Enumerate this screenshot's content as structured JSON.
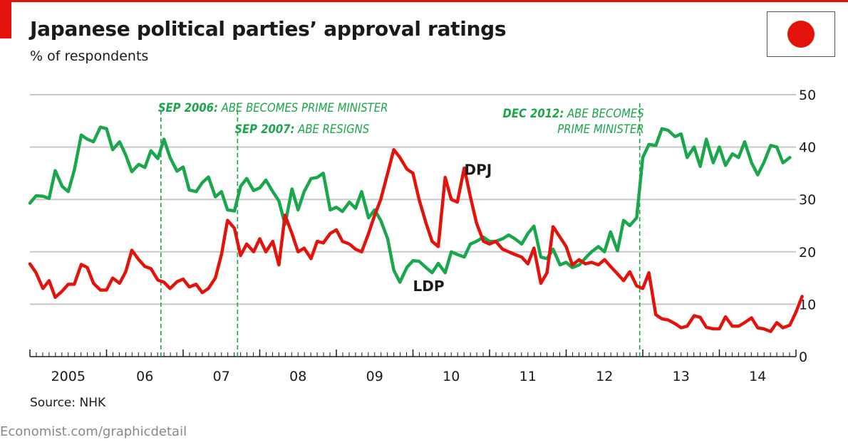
{
  "header": {
    "title": "Japanese political parties’ approval ratings",
    "subtitle": "% of respondents"
  },
  "footer": {
    "source": "Source: NHK",
    "credit": "Economist.com/graphicdetail"
  },
  "colors": {
    "ldp": "#1aa64a",
    "dpj": "#e3120b",
    "annotation": "#1aa64a",
    "grid": "#c8c8c8",
    "brand_red": "#e3120b"
  },
  "chart_data": {
    "type": "line",
    "ylim": [
      0,
      50
    ],
    "yticks": [
      0,
      10,
      20,
      30,
      40,
      50
    ],
    "xlim": [
      2005.0,
      2015.0
    ],
    "year_labels": [
      {
        "x": 2005.5,
        "label": "2005"
      },
      {
        "x": 2006.5,
        "label": "06"
      },
      {
        "x": 2007.5,
        "label": "07"
      },
      {
        "x": 2008.5,
        "label": "08"
      },
      {
        "x": 2009.5,
        "label": "09"
      },
      {
        "x": 2010.5,
        "label": "10"
      },
      {
        "x": 2011.5,
        "label": "11"
      },
      {
        "x": 2012.5,
        "label": "12"
      },
      {
        "x": 2013.5,
        "label": "13"
      },
      {
        "x": 2014.5,
        "label": "14"
      }
    ],
    "annotations": [
      {
        "x": 2006.71,
        "lines": [
          "SEP 2006:",
          " ABE BECOMES PRIME MINISTER"
        ],
        "anchor": "start"
      },
      {
        "x": 2007.71,
        "lines": [
          "SEP 2007:",
          " ABE RESIGNS"
        ],
        "anchor": "start"
      },
      {
        "x": 2012.96,
        "lines": [
          "DEC 2012:",
          " ABE BECOMES",
          "PRIME MINISTER"
        ],
        "anchor": "end"
      }
    ],
    "series": [
      {
        "name": "LDP",
        "label_at": [
          2010.0,
          12.5
        ],
        "points": [
          [
            2005.0,
            29.3
          ],
          [
            2005.08,
            30.7
          ],
          [
            2005.17,
            30.6
          ],
          [
            2005.25,
            30.2
          ],
          [
            2005.33,
            35.5
          ],
          [
            2005.42,
            32.5
          ],
          [
            2005.5,
            31.5
          ],
          [
            2005.58,
            35.6
          ],
          [
            2005.67,
            42.3
          ],
          [
            2005.75,
            41.5
          ],
          [
            2005.83,
            41.0
          ],
          [
            2005.92,
            43.8
          ],
          [
            2006.0,
            43.5
          ],
          [
            2006.08,
            39.5
          ],
          [
            2006.17,
            41.0
          ],
          [
            2006.25,
            38.5
          ],
          [
            2006.33,
            35.3
          ],
          [
            2006.42,
            36.7
          ],
          [
            2006.5,
            36.1
          ],
          [
            2006.58,
            39.3
          ],
          [
            2006.67,
            37.8
          ],
          [
            2006.75,
            41.5
          ],
          [
            2006.83,
            38.0
          ],
          [
            2006.92,
            35.4
          ],
          [
            2007.0,
            36.2
          ],
          [
            2007.08,
            31.8
          ],
          [
            2007.17,
            31.5
          ],
          [
            2007.25,
            33.2
          ],
          [
            2007.33,
            34.3
          ],
          [
            2007.42,
            30.5
          ],
          [
            2007.5,
            31.5
          ],
          [
            2007.58,
            28.0
          ],
          [
            2007.67,
            27.8
          ],
          [
            2007.75,
            32.5
          ],
          [
            2007.83,
            34.0
          ],
          [
            2007.92,
            31.7
          ],
          [
            2008.0,
            32.2
          ],
          [
            2008.08,
            33.7
          ],
          [
            2008.17,
            31.5
          ],
          [
            2008.25,
            29.7
          ],
          [
            2008.33,
            25.2
          ],
          [
            2008.42,
            32.0
          ],
          [
            2008.5,
            28.0
          ],
          [
            2008.58,
            31.5
          ],
          [
            2008.67,
            34.0
          ],
          [
            2008.75,
            34.2
          ],
          [
            2008.83,
            35.0
          ],
          [
            2008.92,
            28.0
          ],
          [
            2009.0,
            28.5
          ],
          [
            2009.08,
            27.7
          ],
          [
            2009.17,
            29.5
          ],
          [
            2009.25,
            28.3
          ],
          [
            2009.33,
            31.5
          ],
          [
            2009.42,
            26.5
          ],
          [
            2009.5,
            28.0
          ],
          [
            2009.58,
            26.0
          ],
          [
            2009.67,
            22.5
          ],
          [
            2009.75,
            16.5
          ],
          [
            2009.83,
            14.2
          ],
          [
            2009.92,
            17.0
          ],
          [
            2010.0,
            18.3
          ],
          [
            2010.08,
            18.2
          ],
          [
            2010.17,
            17.0
          ],
          [
            2010.25,
            16.0
          ],
          [
            2010.33,
            17.8
          ],
          [
            2010.42,
            16.0
          ],
          [
            2010.5,
            20.0
          ],
          [
            2010.58,
            19.5
          ],
          [
            2010.67,
            19.0
          ],
          [
            2010.75,
            21.5
          ],
          [
            2010.83,
            22.0
          ],
          [
            2010.92,
            22.8
          ],
          [
            2011.0,
            22.0
          ],
          [
            2011.08,
            22.0
          ],
          [
            2011.17,
            22.5
          ],
          [
            2011.25,
            23.2
          ],
          [
            2011.33,
            22.5
          ],
          [
            2011.42,
            21.5
          ],
          [
            2011.5,
            23.5
          ],
          [
            2011.58,
            24.9
          ],
          [
            2011.67,
            19.0
          ],
          [
            2011.75,
            18.7
          ],
          [
            2011.83,
            20.5
          ],
          [
            2011.92,
            17.5
          ],
          [
            2012.0,
            18.0
          ],
          [
            2012.08,
            17.0
          ],
          [
            2012.17,
            17.5
          ],
          [
            2012.25,
            18.8
          ],
          [
            2012.33,
            20.0
          ],
          [
            2012.42,
            21.0
          ],
          [
            2012.5,
            20.0
          ],
          [
            2012.58,
            23.8
          ],
          [
            2012.67,
            20.2
          ],
          [
            2012.75,
            26.0
          ],
          [
            2012.83,
            25.0
          ],
          [
            2012.92,
            26.5
          ],
          [
            2013.0,
            38.0
          ],
          [
            2013.08,
            40.5
          ],
          [
            2013.17,
            40.3
          ],
          [
            2013.25,
            43.5
          ],
          [
            2013.33,
            43.2
          ],
          [
            2013.42,
            42.0
          ],
          [
            2013.5,
            42.5
          ],
          [
            2013.58,
            38.0
          ],
          [
            2013.67,
            40.0
          ],
          [
            2013.75,
            36.3
          ],
          [
            2013.83,
            41.5
          ],
          [
            2013.92,
            37.0
          ],
          [
            2014.0,
            40.0
          ],
          [
            2014.08,
            36.5
          ],
          [
            2014.17,
            38.7
          ],
          [
            2014.25,
            38.0
          ],
          [
            2014.33,
            41.0
          ],
          [
            2014.42,
            37.0
          ],
          [
            2014.5,
            34.7
          ],
          [
            2014.58,
            37.0
          ],
          [
            2014.67,
            40.3
          ],
          [
            2014.75,
            40.0
          ],
          [
            2014.83,
            37.0
          ],
          [
            2014.92,
            38.0
          ]
        ]
      },
      {
        "name": "DPJ",
        "label_at": [
          2010.67,
          34.7
        ],
        "points": [
          [
            2005.0,
            17.7
          ],
          [
            2005.08,
            16.0
          ],
          [
            2005.17,
            13.0
          ],
          [
            2005.25,
            14.5
          ],
          [
            2005.33,
            11.3
          ],
          [
            2005.42,
            12.5
          ],
          [
            2005.5,
            13.8
          ],
          [
            2005.58,
            13.8
          ],
          [
            2005.67,
            17.6
          ],
          [
            2005.75,
            17.0
          ],
          [
            2005.83,
            14.0
          ],
          [
            2005.92,
            12.7
          ],
          [
            2006.0,
            12.7
          ],
          [
            2006.08,
            15.0
          ],
          [
            2006.17,
            14.0
          ],
          [
            2006.25,
            16.2
          ],
          [
            2006.33,
            20.3
          ],
          [
            2006.42,
            18.5
          ],
          [
            2006.5,
            17.2
          ],
          [
            2006.58,
            16.8
          ],
          [
            2006.67,
            14.6
          ],
          [
            2006.75,
            14.2
          ],
          [
            2006.83,
            13.0
          ],
          [
            2006.92,
            14.3
          ],
          [
            2007.0,
            14.8
          ],
          [
            2007.08,
            13.3
          ],
          [
            2007.17,
            13.8
          ],
          [
            2007.25,
            12.2
          ],
          [
            2007.33,
            13.0
          ],
          [
            2007.42,
            15.0
          ],
          [
            2007.5,
            19.5
          ],
          [
            2007.58,
            26.0
          ],
          [
            2007.67,
            24.5
          ],
          [
            2007.75,
            19.3
          ],
          [
            2007.83,
            21.5
          ],
          [
            2007.92,
            20.0
          ],
          [
            2008.0,
            22.5
          ],
          [
            2008.08,
            20.0
          ],
          [
            2008.17,
            22.0
          ],
          [
            2008.25,
            17.5
          ],
          [
            2008.33,
            27.0
          ],
          [
            2008.42,
            23.5
          ],
          [
            2008.5,
            20.0
          ],
          [
            2008.58,
            20.7
          ],
          [
            2008.67,
            18.7
          ],
          [
            2008.75,
            22.0
          ],
          [
            2008.83,
            21.7
          ],
          [
            2008.92,
            23.5
          ],
          [
            2009.0,
            24.2
          ],
          [
            2009.08,
            22.0
          ],
          [
            2009.17,
            21.5
          ],
          [
            2009.25,
            20.5
          ],
          [
            2009.33,
            20.0
          ],
          [
            2009.42,
            23.5
          ],
          [
            2009.5,
            27.0
          ],
          [
            2009.58,
            30.0
          ],
          [
            2009.67,
            35.0
          ],
          [
            2009.75,
            39.5
          ],
          [
            2009.83,
            38.0
          ],
          [
            2009.92,
            35.8
          ],
          [
            2010.0,
            35.0
          ],
          [
            2010.08,
            30.0
          ],
          [
            2010.17,
            25.5
          ],
          [
            2010.25,
            22.0
          ],
          [
            2010.33,
            21.0
          ],
          [
            2010.42,
            34.2
          ],
          [
            2010.5,
            30.0
          ],
          [
            2010.58,
            29.5
          ],
          [
            2010.67,
            36.0
          ],
          [
            2010.75,
            30.5
          ],
          [
            2010.83,
            25.5
          ],
          [
            2010.92,
            22.0
          ],
          [
            2011.0,
            21.5
          ],
          [
            2011.08,
            22.0
          ],
          [
            2011.17,
            20.5
          ],
          [
            2011.25,
            20.0
          ],
          [
            2011.33,
            19.5
          ],
          [
            2011.42,
            19.0
          ],
          [
            2011.5,
            17.7
          ],
          [
            2011.58,
            20.7
          ],
          [
            2011.67,
            14.0
          ],
          [
            2011.75,
            16.0
          ],
          [
            2011.83,
            24.8
          ],
          [
            2011.92,
            22.8
          ],
          [
            2012.0,
            21.0
          ],
          [
            2012.08,
            17.5
          ],
          [
            2012.17,
            18.5
          ],
          [
            2012.25,
            17.7
          ],
          [
            2012.33,
            18.0
          ],
          [
            2012.42,
            17.5
          ],
          [
            2012.5,
            18.5
          ],
          [
            2012.58,
            17.2
          ],
          [
            2012.67,
            15.8
          ],
          [
            2012.75,
            14.5
          ],
          [
            2012.83,
            16.2
          ],
          [
            2012.92,
            13.5
          ],
          [
            2013.0,
            13.0
          ],
          [
            2013.08,
            16.0
          ],
          [
            2013.17,
            8.0
          ],
          [
            2013.25,
            7.2
          ],
          [
            2013.33,
            7.0
          ],
          [
            2013.42,
            6.3
          ],
          [
            2013.5,
            5.5
          ],
          [
            2013.58,
            5.8
          ],
          [
            2013.67,
            7.8
          ],
          [
            2013.75,
            7.5
          ],
          [
            2013.83,
            5.6
          ],
          [
            2013.92,
            5.3
          ],
          [
            2014.0,
            5.3
          ],
          [
            2014.08,
            7.6
          ],
          [
            2014.17,
            5.8
          ],
          [
            2014.25,
            5.8
          ],
          [
            2014.33,
            6.5
          ],
          [
            2014.42,
            7.4
          ],
          [
            2014.5,
            5.5
          ],
          [
            2014.58,
            5.3
          ],
          [
            2014.67,
            4.8
          ],
          [
            2014.75,
            6.5
          ],
          [
            2014.83,
            5.5
          ],
          [
            2014.92,
            6.0
          ],
          [
            2015.0,
            8.5
          ],
          [
            2015.08,
            11.5
          ]
        ]
      }
    ]
  }
}
